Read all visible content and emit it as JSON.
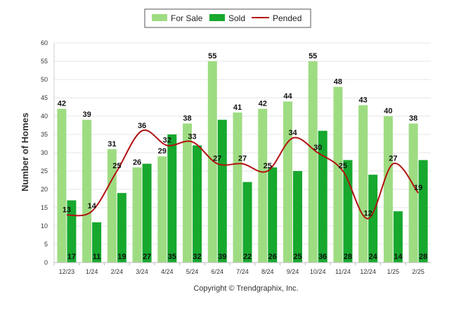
{
  "chart_data": {
    "type": "bar",
    "title": "",
    "xlabel": "",
    "ylabel": "Number of Homes",
    "ylim": [
      0,
      60
    ],
    "yticks": [
      0,
      5,
      10,
      15,
      20,
      25,
      30,
      35,
      40,
      45,
      50,
      55,
      60
    ],
    "grid": true,
    "legend_position": "top-center",
    "categories": [
      "12/23",
      "1/24",
      "2/24",
      "3/24",
      "4/24",
      "5/24",
      "6/24",
      "7/24",
      "8/24",
      "9/24",
      "10/24",
      "11/24",
      "12/24",
      "1/25",
      "2/25"
    ],
    "series": [
      {
        "name": "For Sale",
        "kind": "bar",
        "color": "#9edc82",
        "values": [
          42,
          39,
          31,
          26,
          29,
          38,
          55,
          41,
          42,
          44,
          55,
          48,
          43,
          40,
          38
        ]
      },
      {
        "name": "Sold",
        "kind": "bar",
        "color": "#17a82e",
        "values": [
          17,
          11,
          19,
          27,
          35,
          32,
          39,
          22,
          26,
          25,
          36,
          28,
          24,
          14,
          28
        ]
      },
      {
        "name": "Pended",
        "kind": "line",
        "color": "#b21212",
        "values": [
          13,
          14,
          25,
          36,
          32,
          33,
          27,
          27,
          25,
          34,
          30,
          25,
          12,
          27,
          19
        ]
      }
    ]
  },
  "footer": {
    "copyright": "Copyright © Trendgraphix, Inc."
  }
}
